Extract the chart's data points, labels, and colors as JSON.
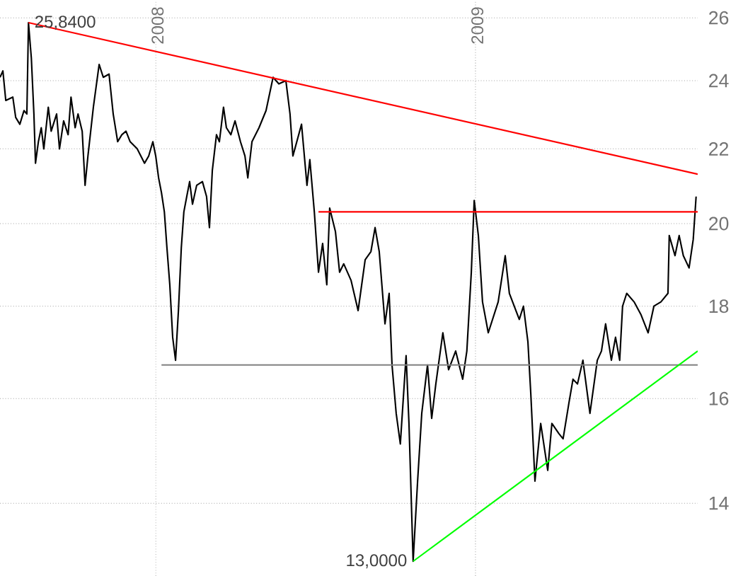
{
  "chart_data": {
    "type": "line",
    "log": "y",
    "grid": true,
    "xlim": [
      2007.513,
      2009.695
    ],
    "ylim": [
      12.76,
      26.6
    ],
    "xticks": [
      2008,
      2009
    ],
    "yticks": [
      14,
      16,
      18,
      20,
      22,
      24,
      26
    ],
    "annotations": [
      {
        "text": "25,8400",
        "x": 2007.602,
        "y": 25.84
      },
      {
        "text": "13,0000",
        "x": 2008.805,
        "y": 13.0
      }
    ],
    "series": [
      {
        "color": "#000000",
        "x": [
          2007.513,
          2007.522,
          2007.531,
          2007.553,
          2007.562,
          2007.575,
          2007.588,
          2007.597,
          2007.602,
          2007.611,
          2007.619,
          2007.624,
          2007.633,
          2007.642,
          2007.65,
          2007.664,
          2007.673,
          2007.69,
          2007.699,
          2007.712,
          2007.726,
          2007.735,
          2007.748,
          2007.757,
          2007.77,
          2007.779,
          2007.788,
          2007.805,
          2007.823,
          2007.836,
          2007.854,
          2007.867,
          2007.881,
          2007.894,
          2007.907,
          2007.92,
          2007.942,
          2007.965,
          2007.978,
          2007.991,
          2008.0,
          2008.009,
          2008.018,
          2008.027,
          2008.035,
          2008.044,
          2008.053,
          2008.062,
          2008.071,
          2008.08,
          2008.088,
          2008.097,
          2008.106,
          2008.115,
          2008.128,
          2008.146,
          2008.159,
          2008.168,
          2008.177,
          2008.19,
          2008.199,
          2008.212,
          2008.221,
          2008.235,
          2008.248,
          2008.265,
          2008.279,
          2008.288,
          2008.301,
          2008.323,
          2008.345,
          2008.367,
          2008.385,
          2008.407,
          2008.42,
          2008.429,
          2008.456,
          2008.473,
          2008.482,
          2008.496,
          2008.509,
          2008.522,
          2008.535,
          2008.544,
          2008.562,
          2008.575,
          2008.588,
          2008.611,
          2008.633,
          2008.655,
          2008.673,
          2008.686,
          2008.699,
          2008.717,
          2008.73,
          2008.739,
          2008.752,
          2008.765,
          2008.783,
          2008.792,
          2008.805,
          2008.819,
          2008.832,
          2008.85,
          2008.863,
          2008.876,
          2008.898,
          2008.916,
          2008.938,
          2008.96,
          2008.973,
          2008.987,
          2008.996,
          2009.009,
          2009.022,
          2009.04,
          2009.071,
          2009.093,
          2009.106,
          2009.137,
          2009.15,
          2009.164,
          2009.173,
          2009.186,
          2009.204,
          2009.226,
          2009.239,
          2009.261,
          2009.274,
          2009.292,
          2009.305,
          2009.319,
          2009.336,
          2009.358,
          2009.381,
          2009.394,
          2009.407,
          2009.425,
          2009.438,
          2009.451,
          2009.46,
          2009.473,
          2009.496,
          2009.518,
          2009.54,
          2009.558,
          2009.58,
          2009.602,
          2009.606,
          2009.624,
          2009.637,
          2009.65,
          2009.668,
          2009.681,
          2009.69
        ],
        "values": [
          24.1,
          24.3,
          23.4,
          23.5,
          22.9,
          22.7,
          23.1,
          23.0,
          25.84,
          24.7,
          23.0,
          21.6,
          22.2,
          22.6,
          22.0,
          23.2,
          22.5,
          23.0,
          22.0,
          22.8,
          22.4,
          23.5,
          22.6,
          23.0,
          22.5,
          21.0,
          21.8,
          23.2,
          24.5,
          24.1,
          24.2,
          23.0,
          22.2,
          22.4,
          22.5,
          22.2,
          22.0,
          21.6,
          21.8,
          22.2,
          21.8,
          21.2,
          20.8,
          20.3,
          19.4,
          18.5,
          17.3,
          16.8,
          17.9,
          19.4,
          20.3,
          20.7,
          21.1,
          20.5,
          21.0,
          21.1,
          20.7,
          19.9,
          21.4,
          22.4,
          22.2,
          23.2,
          22.6,
          22.4,
          22.8,
          22.2,
          21.8,
          21.2,
          22.2,
          22.6,
          23.1,
          24.1,
          23.9,
          24.0,
          23.0,
          21.8,
          22.7,
          21.0,
          21.7,
          20.3,
          18.8,
          19.5,
          18.5,
          20.4,
          19.8,
          18.8,
          19.0,
          18.6,
          17.9,
          19.1,
          19.3,
          19.9,
          19.3,
          17.6,
          18.3,
          16.7,
          15.7,
          15.1,
          16.9,
          15.5,
          13.0,
          14.4,
          15.7,
          16.7,
          15.6,
          16.3,
          17.4,
          16.6,
          17.0,
          16.4,
          17.0,
          18.8,
          20.6,
          19.7,
          18.1,
          17.4,
          18.1,
          19.2,
          18.3,
          17.7,
          18.0,
          17.2,
          16.1,
          14.4,
          15.5,
          14.6,
          15.5,
          15.3,
          15.2,
          15.9,
          16.4,
          16.3,
          16.8,
          15.7,
          16.8,
          17.0,
          17.6,
          16.8,
          17.3,
          16.8,
          18.0,
          18.3,
          18.1,
          17.8,
          17.4,
          18.0,
          18.1,
          18.3,
          19.7,
          19.2,
          19.7,
          19.2,
          18.9,
          19.6,
          20.7
        ]
      },
      {
        "color": "#ff0000",
        "x": [
          2007.602,
          2009.695
        ],
        "values": [
          25.84,
          21.3
        ]
      },
      {
        "color": "#ff0000",
        "x": [
          2008.509,
          2009.695
        ],
        "values": [
          20.3,
          20.3
        ]
      },
      {
        "color": "#808080",
        "x": [
          2008.018,
          2009.695
        ],
        "values": [
          16.7,
          16.7
        ]
      },
      {
        "color": "#00ff00",
        "x": [
          2008.805,
          2009.695
        ],
        "values": [
          13.0,
          17.0
        ]
      }
    ]
  }
}
